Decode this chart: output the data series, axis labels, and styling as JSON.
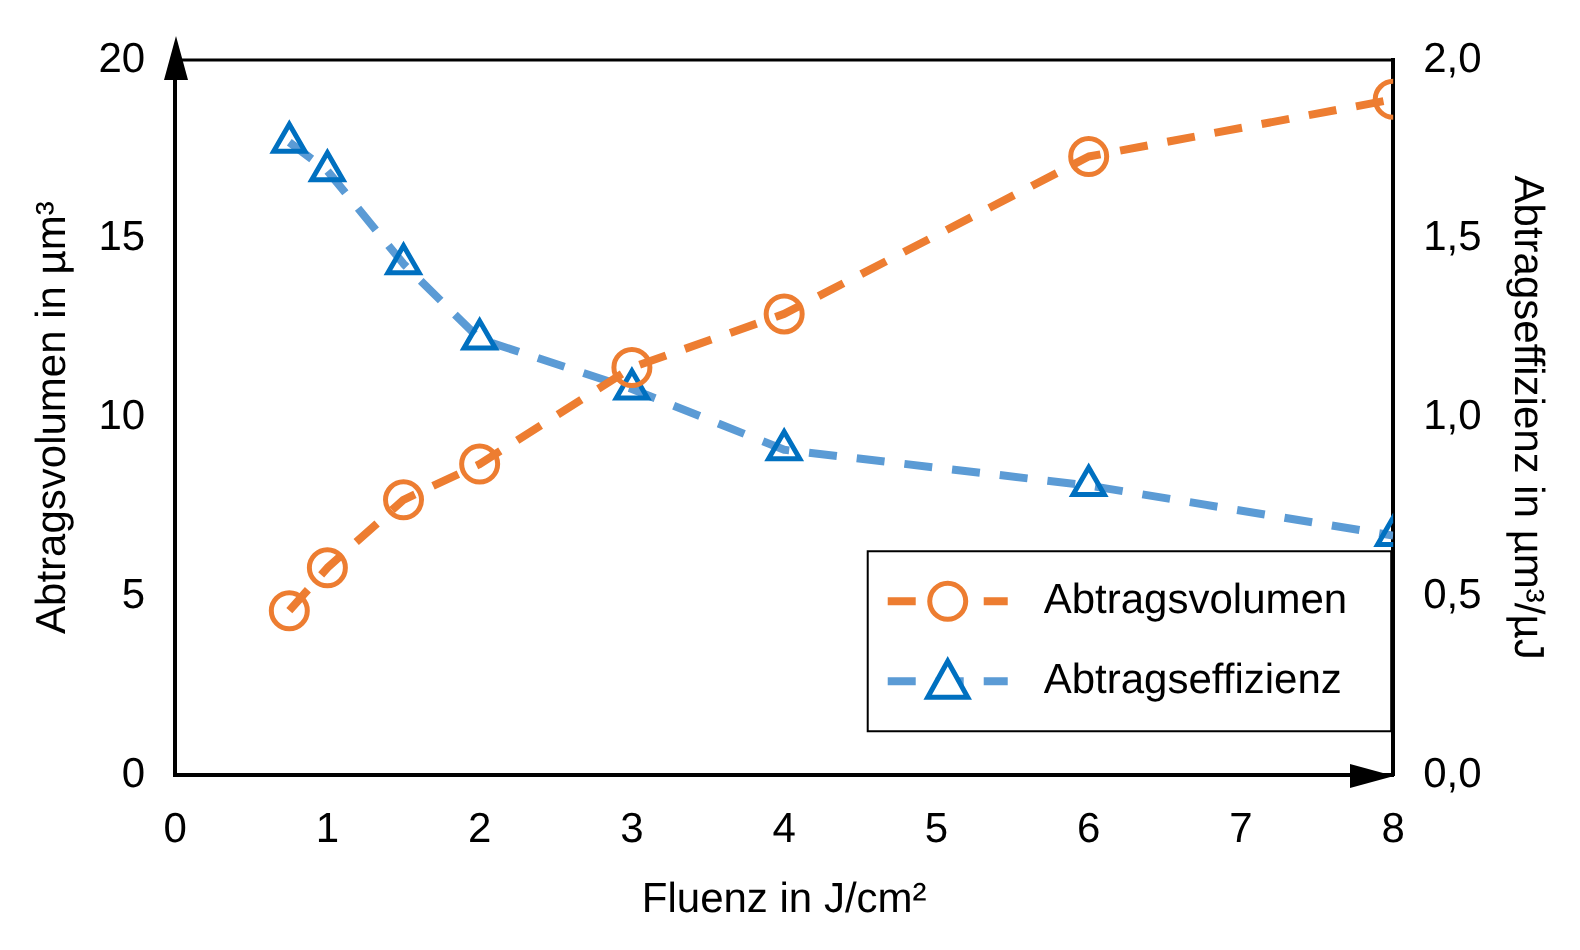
{
  "chart_data": {
    "type": "line",
    "xlabel": "Fluenz in J/cm²",
    "ylabel": "Abtragsvolumen in µm³",
    "y2label": "Abtragseffizienz in µm³/µJ",
    "x": [
      0.75,
      1,
      1.5,
      2,
      3,
      4,
      6,
      8
    ],
    "series": [
      {
        "name": "Abtragsvolumen",
        "color": "#ed7d31",
        "marker": "circle",
        "values": [
          4.6,
          5.8,
          7.7,
          8.7,
          11.4,
          12.9,
          17.3,
          18.9
        ]
      },
      {
        "name": "Abtragseffizienz",
        "color": "#5b9bd5",
        "marker": "triangle",
        "axis": "y2",
        "values": [
          1.77,
          1.69,
          1.43,
          1.22,
          1.08,
          0.91,
          0.81,
          0.67
        ]
      }
    ],
    "line_style": "dashed",
    "grid": false,
    "legend": "bottom right",
    "xlim": [
      0,
      8
    ],
    "xticks": [
      0,
      1,
      2,
      3,
      4,
      5,
      6,
      7,
      8
    ],
    "ylim": [
      0,
      20
    ],
    "yticks": [
      0,
      5,
      10,
      15,
      20
    ],
    "y2lim": [
      0,
      2
    ],
    "y2ticks": [
      {
        "value": 0,
        "label": "0,0"
      },
      {
        "value": 0.5,
        "label": "0,5"
      },
      {
        "value": 1,
        "label": "1,0"
      },
      {
        "value": 1.5,
        "label": "1,5"
      },
      {
        "value": 2,
        "label": "2,0"
      }
    ]
  }
}
